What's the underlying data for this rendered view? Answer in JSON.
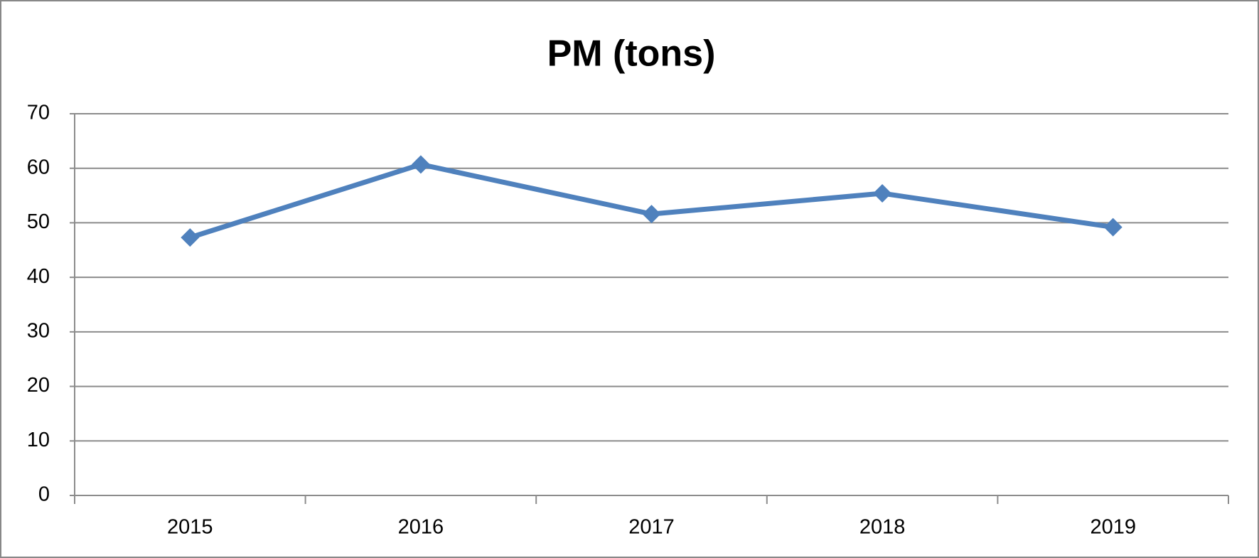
{
  "chart_data": {
    "type": "line",
    "title": "PM (tons)",
    "categories": [
      "2015",
      "2016",
      "2017",
      "2018",
      "2019"
    ],
    "series": [
      {
        "name": "PM (tons)",
        "color": "#4f81bd",
        "values": [
          47.3,
          60.7,
          51.6,
          55.4,
          49.2
        ]
      }
    ],
    "ylim": [
      0,
      70
    ],
    "yticks": [
      0,
      10,
      20,
      30,
      40,
      50,
      60,
      70
    ],
    "grid": true
  }
}
